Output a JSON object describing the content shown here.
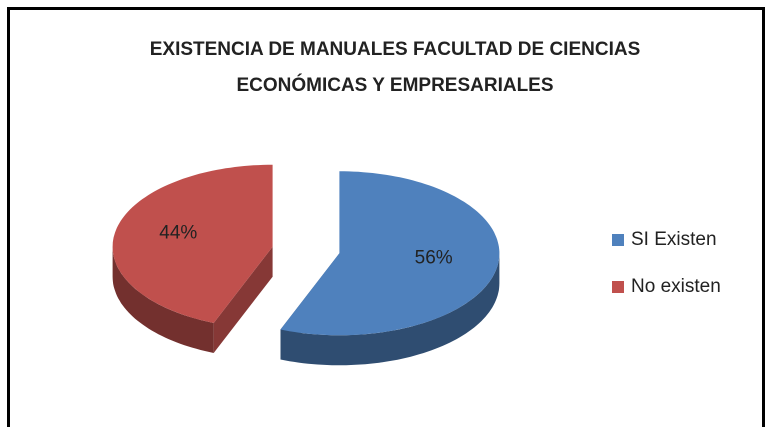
{
  "chart_data": {
    "type": "pie",
    "title": "EXISTENCIA DE MANUALES FACULTAD DE CIENCIAS ECONÓMICAS Y EMPRESARIALES",
    "categories": [
      "SI Existen",
      "No existen"
    ],
    "values": [
      56,
      44
    ],
    "value_labels": [
      "56%",
      "44%"
    ],
    "colors": [
      "#4f81bd",
      "#c0504d"
    ],
    "legend": "right"
  }
}
